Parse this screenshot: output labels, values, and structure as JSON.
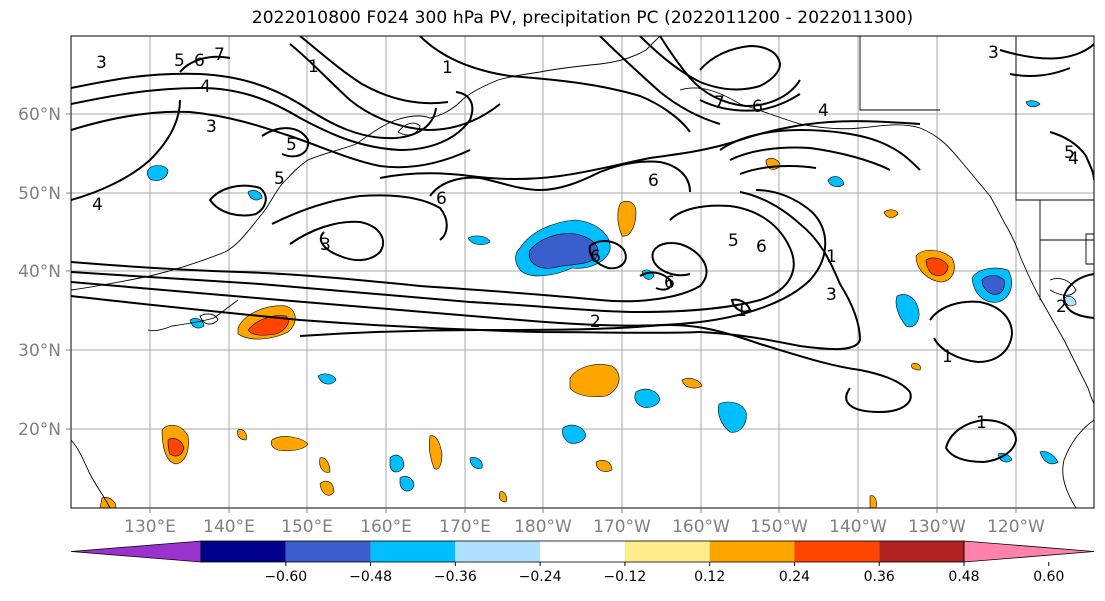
{
  "title": "2022010800 F024 300 hPa PV, precipitation PC (2022011200 - 2022011300)",
  "lat_labels": [
    "60°N",
    "50°N",
    "40°N",
    "30°N",
    "20°N"
  ],
  "lon_labels": [
    "130°E",
    "140°E",
    "150°E",
    "160°E",
    "170°E",
    "180°W",
    "170°W",
    "160°W",
    "150°W",
    "140°W",
    "130°W",
    "120°W"
  ],
  "colorbar": {
    "ticks": [
      "−0.60",
      "−0.48",
      "−0.36",
      "−0.24",
      "−0.12",
      "0.12",
      "0.24",
      "0.36",
      "0.48",
      "0.60"
    ],
    "colors": [
      "#9a32cd",
      "#00008b",
      "#3a5fcd",
      "#00bfff",
      "#b0e2ff",
      "#ffffff",
      "#ffec8b",
      "#ffa500",
      "#ff4500",
      "#b22222",
      "#ff82ab"
    ]
  },
  "pv_labels": [
    "1",
    "2",
    "3",
    "4",
    "5",
    "6",
    "7"
  ],
  "fields": {
    "contours": "300 hPa PV",
    "shading": "precipitation PC"
  }
}
